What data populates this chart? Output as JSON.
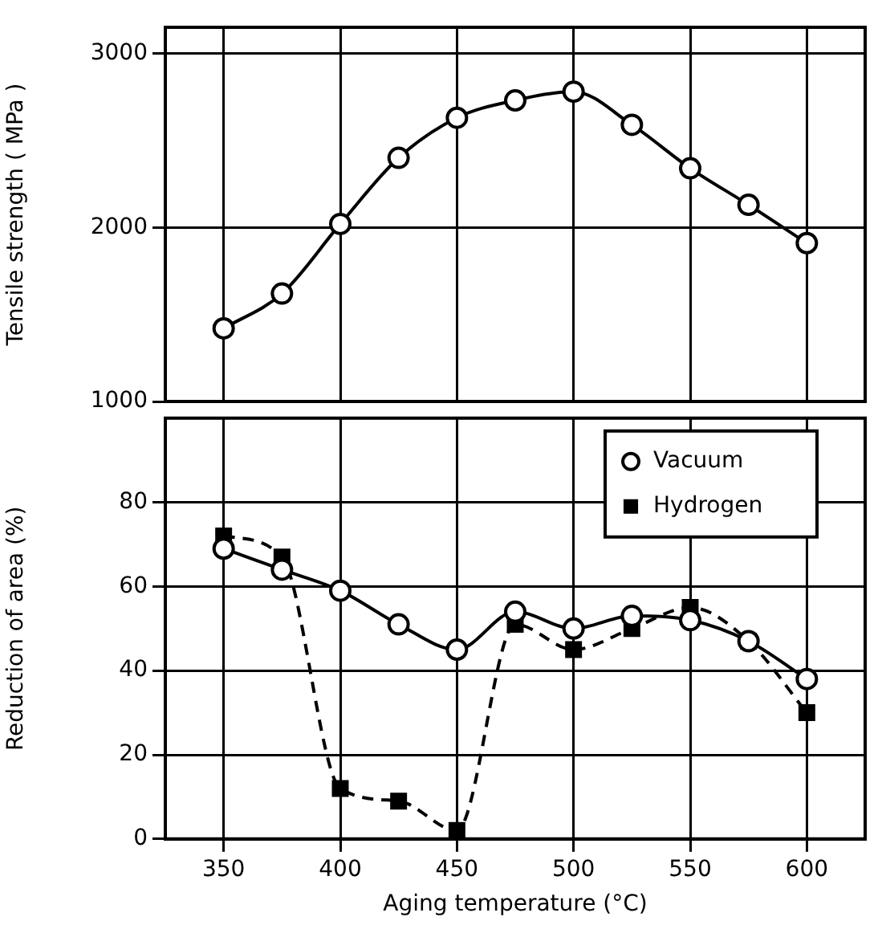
{
  "chart_data": [
    {
      "type": "line",
      "ylabel": "Tensile strength ( MPa )",
      "x": [
        350,
        375,
        400,
        425,
        450,
        475,
        500,
        525,
        550,
        575,
        600
      ],
      "xlim": [
        325,
        625
      ],
      "xticks": [
        350,
        400,
        450,
        500,
        550,
        600
      ],
      "ylim": [
        1000,
        3150
      ],
      "yticks": [
        1000,
        2000,
        3000
      ],
      "tick_labels": "y",
      "grid": true,
      "legend": false,
      "series": [
        {
          "color": "#000000",
          "marker": "circle",
          "line_style": "solid",
          "values": [
            1420,
            1620,
            2020,
            2400,
            2630,
            2730,
            2780,
            2590,
            2340,
            2130,
            1910
          ]
        }
      ]
    },
    {
      "type": "line",
      "xlabel": "Aging temperature (°C)",
      "ylabel": "Reduction of area (%)",
      "x": [
        350,
        375,
        400,
        425,
        450,
        475,
        500,
        525,
        550,
        575,
        600
      ],
      "xlim": [
        325,
        625
      ],
      "xticks": [
        350,
        400,
        450,
        500,
        550,
        600
      ],
      "ylim": [
        0,
        100
      ],
      "yticks": [
        0,
        20,
        40,
        60,
        80
      ],
      "grid": true,
      "legend": "top right",
      "series": [
        {
          "name": "Vacuum",
          "color": "#000000",
          "marker": "circle",
          "line_style": "solid",
          "values": [
            69,
            64,
            59,
            51,
            45,
            54,
            50,
            53,
            52,
            47,
            38
          ]
        },
        {
          "name": "Hydrogen",
          "color": "#000000",
          "marker": "square",
          "line_style": "dashed",
          "values": [
            72,
            67,
            12,
            9,
            2,
            51,
            45,
            50,
            55,
            47,
            30
          ]
        }
      ]
    }
  ]
}
